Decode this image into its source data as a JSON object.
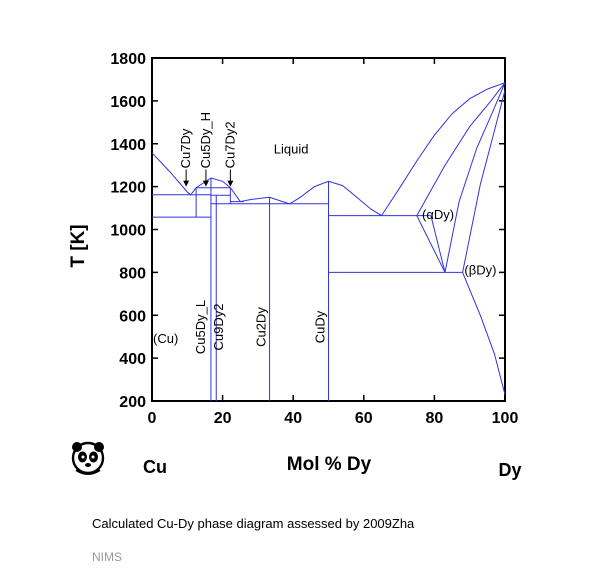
{
  "chart_data": {
    "type": "line",
    "title": "",
    "xlabel": "Mol % Dy",
    "ylabel": "T [K]",
    "xlim": [
      0,
      100
    ],
    "ylim": [
      200,
      1800
    ],
    "x_ticks": [
      "0",
      "20",
      "40",
      "60",
      "80",
      "100"
    ],
    "y_ticks": [
      "200",
      "400",
      "600",
      "800",
      "1000",
      "1200",
      "1400",
      "1600",
      "1800"
    ],
    "left_element": "Cu",
    "right_element": "Dy",
    "grid": false,
    "line_color": "#3333dd",
    "region_labels": {
      "liquid": "Liquid",
      "cu": "(Cu)",
      "alpha_dy": "(αDy)",
      "beta_dy": "(βDy)"
    },
    "compound_labels": [
      {
        "name": "Cu7Dy",
        "x": 12.5,
        "arrow": true
      },
      {
        "name": "Cu5Dy_H",
        "x": 16.7,
        "arrow": true
      },
      {
        "name": "Cu7Dy2",
        "x": 22.2,
        "arrow": true
      },
      {
        "name": "Cu5Dy_L",
        "x": 16.7,
        "arrow": false
      },
      {
        "name": "Cu9Dy2",
        "x": 18.2,
        "arrow": false
      },
      {
        "name": "Cu2Dy",
        "x": 33.3,
        "arrow": false
      },
      {
        "name": "CuDy",
        "x": 50.0,
        "arrow": false
      }
    ],
    "series": [
      {
        "name": "liquidus",
        "points": [
          [
            0,
            1358
          ],
          [
            5,
            1270
          ],
          [
            10,
            1175
          ],
          [
            11,
            1162
          ],
          [
            12.5,
            1195
          ],
          [
            16.7,
            1240
          ],
          [
            20,
            1225
          ],
          [
            22.2,
            1195
          ],
          [
            25,
            1130
          ],
          [
            28,
            1140
          ],
          [
            33.3,
            1150
          ],
          [
            37,
            1130
          ],
          [
            39,
            1120
          ],
          [
            42,
            1150
          ],
          [
            46,
            1200
          ],
          [
            50,
            1225
          ],
          [
            54,
            1205
          ],
          [
            58,
            1150
          ],
          [
            62,
            1095
          ],
          [
            65,
            1065
          ],
          [
            70,
            1190
          ],
          [
            75,
            1320
          ],
          [
            80,
            1440
          ],
          [
            85,
            1540
          ],
          [
            90,
            1610
          ],
          [
            95,
            1655
          ],
          [
            100,
            1685
          ]
        ]
      },
      {
        "name": "dy_solidus_alpha",
        "points": [
          [
            75,
            1065
          ],
          [
            83,
            1300
          ],
          [
            90,
            1480
          ],
          [
            96,
            1600
          ],
          [
            100,
            1685
          ]
        ]
      },
      {
        "name": "beta_alpha_left",
        "points": [
          [
            83,
            800
          ],
          [
            87,
            1130
          ],
          [
            92,
            1380
          ],
          [
            96,
            1530
          ],
          [
            100,
            1685
          ]
        ]
      },
      {
        "name": "beta_alpha_right",
        "points": [
          [
            88,
            800
          ],
          [
            93,
            1210
          ],
          [
            97,
            1460
          ],
          [
            100,
            1650
          ]
        ]
      },
      {
        "name": "alpha_solvus_upper",
        "points": [
          [
            75,
            1065
          ],
          [
            83,
            800
          ]
        ]
      },
      {
        "name": "alpha_solvus_lower",
        "points": [
          [
            79,
            1065
          ],
          [
            83,
            800
          ]
        ]
      },
      {
        "name": "beta_solvus",
        "points": [
          [
            88,
            800
          ],
          [
            93,
            600
          ],
          [
            97,
            420
          ],
          [
            100,
            230
          ]
        ]
      }
    ],
    "eutectics": [
      {
        "T": 1162,
        "x": [
          0,
          16.7
        ]
      },
      {
        "T": 1058,
        "x": [
          0,
          16.7
        ]
      },
      {
        "T": 1120,
        "x": [
          16.7,
          50
        ]
      },
      {
        "T": 1065,
        "x": [
          50,
          79
        ]
      },
      {
        "T": 800,
        "x": [
          50,
          88
        ]
      }
    ],
    "compounds": [
      {
        "x": 12.5,
        "T": [
          1058,
          1195
        ]
      },
      {
        "x": 16.7,
        "T": [
          200,
          1240
        ]
      },
      {
        "x": 18.2,
        "T": [
          200,
          1160
        ]
      },
      {
        "x": 22.2,
        "T": [
          1120,
          1195
        ]
      },
      {
        "x": 33.3,
        "T": [
          200,
          1150
        ]
      },
      {
        "x": 50,
        "T": [
          200,
          1225
        ]
      }
    ],
    "extra_segments": [
      {
        "x": [
          12.5,
          22.2
        ],
        "T": 1195
      },
      {
        "x": [
          16.7,
          22.2
        ],
        "T": 1160
      },
      {
        "x": [
          22.2,
          26
        ],
        "T": 1130
      }
    ]
  },
  "caption": "Calculated Cu-Dy phase diagram assessed by 2009Zha",
  "source": "NIMS",
  "logo_icon": "panda-icon"
}
